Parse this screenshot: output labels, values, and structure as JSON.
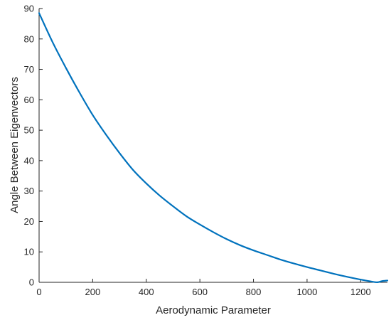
{
  "chart_data": {
    "type": "line",
    "title": "",
    "xlabel": "Aerodynamic Parameter",
    "ylabel": "Angle Between Eigenvectors",
    "xlim": [
      0,
      1300
    ],
    "ylim": [
      0,
      90
    ],
    "xticks": [
      0,
      200,
      400,
      600,
      800,
      1000,
      1200
    ],
    "yticks": [
      0,
      10,
      20,
      30,
      40,
      50,
      60,
      70,
      80,
      90
    ],
    "grid": false,
    "series_color": "#0072BD",
    "series": [
      {
        "x": [
          0,
          50,
          100,
          150,
          200,
          250,
          300,
          350,
          400,
          450,
          500,
          550,
          600,
          650,
          700,
          750,
          800,
          850,
          900,
          950,
          1000,
          1050,
          1100,
          1150,
          1200,
          1250,
          1265,
          1280,
          1300
        ],
        "y": [
          88.5,
          79,
          70.5,
          62.5,
          55,
          48.5,
          42.5,
          37,
          32.5,
          28.5,
          25,
          21.7,
          19,
          16.5,
          14.2,
          12.2,
          10.5,
          9,
          7.5,
          6.2,
          5,
          3.9,
          2.8,
          1.8,
          0.9,
          0.1,
          0.05,
          0.4,
          0.6
        ]
      }
    ]
  }
}
